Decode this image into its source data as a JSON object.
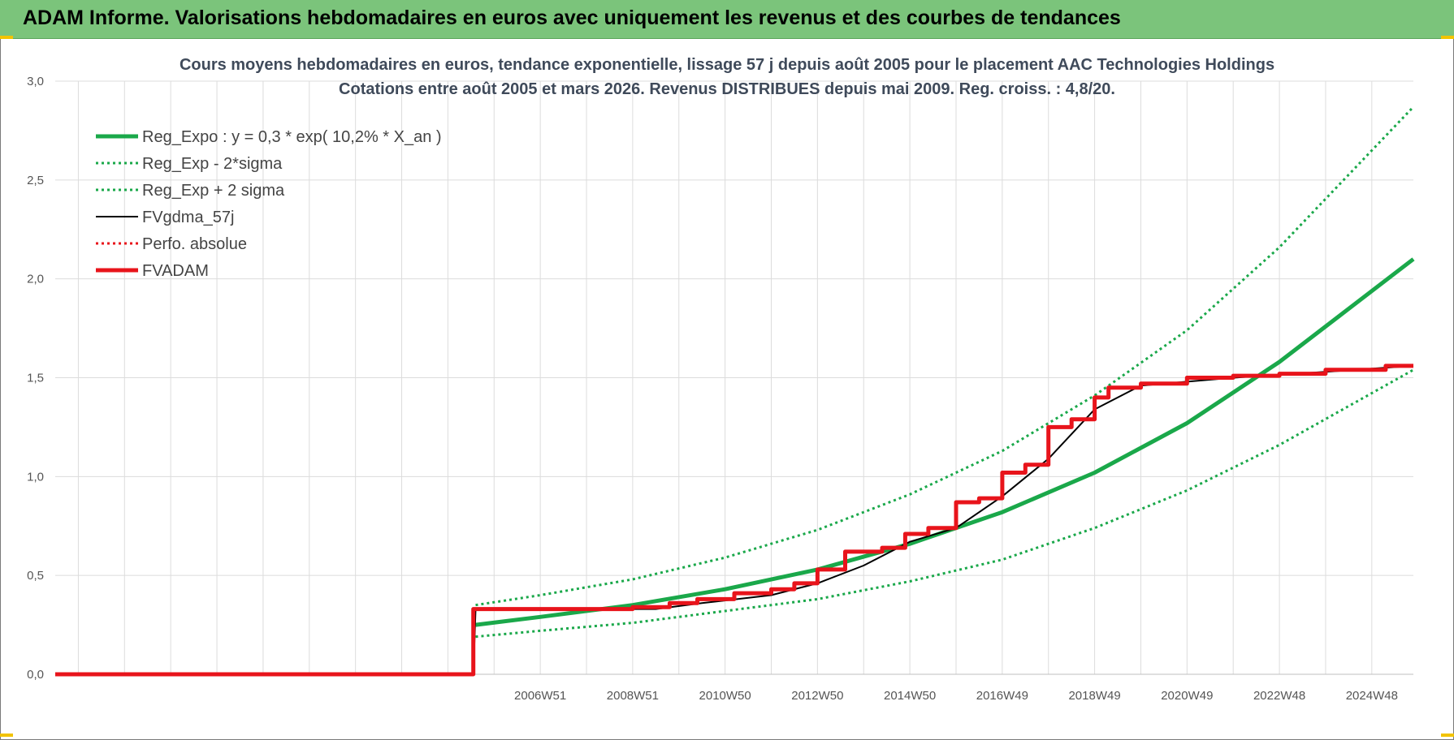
{
  "banner": {
    "title": "ADAM Informe. Valorisations hebdomadaires en euros avec uniquement les revenus et des courbes de tendances"
  },
  "colors": {
    "banner_bg": "#7bc47b",
    "green": "#1aa84a",
    "red": "#e8141b",
    "black": "#000000"
  },
  "chart_data": {
    "type": "line",
    "title": "Cours moyens hebdomadaires en euros, tendance exponentielle, lissage 57 j depuis août 2005 pour le placement AAC Technologies Holdings",
    "subtitle": "Cotations entre août 2005 et mars 2026. Revenus DISTRIBUES depuis mai 2009. Reg. croiss. : 4,8/20.",
    "xlabel": "",
    "ylabel": "",
    "ylim": [
      0,
      3
    ],
    "y_ticks": [
      "0,0",
      "0,5",
      "1,0",
      "1,5",
      "2,0",
      "2,5",
      "3,0"
    ],
    "x_range": [
      1996.5,
      2025.9
    ],
    "x_tick_labels": [
      "2006W51",
      "2008W51",
      "2010W50",
      "2012W50",
      "2014W50",
      "2016W49",
      "2018W49",
      "2020W49",
      "2022W48",
      "2024W48"
    ],
    "grid": true,
    "legend_position": "top-left",
    "series": [
      {
        "name": "Reg_Expo : y = 0,3 * exp( 10,2% *  X_an )",
        "color": "#1aa84a",
        "style": "solid-thick",
        "x": [
          2005.6,
          2007,
          2009,
          2011,
          2013,
          2015,
          2017,
          2019,
          2021,
          2023,
          2025.9
        ],
        "y": [
          0.25,
          0.29,
          0.35,
          0.43,
          0.53,
          0.66,
          0.82,
          1.02,
          1.27,
          1.58,
          2.1
        ]
      },
      {
        "name": "Reg_Exp - 2*sigma",
        "color": "#1aa84a",
        "style": "dotted",
        "x": [
          2005.6,
          2007,
          2009,
          2011,
          2013,
          2015,
          2017,
          2019,
          2021,
          2023,
          2025.9
        ],
        "y": [
          0.19,
          0.22,
          0.26,
          0.32,
          0.38,
          0.47,
          0.58,
          0.74,
          0.93,
          1.16,
          1.54
        ]
      },
      {
        "name": "Reg_Exp + 2 sigma",
        "color": "#1aa84a",
        "style": "dotted",
        "x": [
          2005.6,
          2007,
          2009,
          2011,
          2013,
          2015,
          2017,
          2019,
          2021,
          2023,
          2025.9
        ],
        "y": [
          0.35,
          0.4,
          0.48,
          0.59,
          0.73,
          0.91,
          1.13,
          1.41,
          1.74,
          2.16,
          2.87
        ]
      },
      {
        "name": "FVgdma_57j",
        "color": "#000000",
        "style": "solid-thin",
        "x": [
          1996.5,
          2005.55,
          2005.6,
          2009.5,
          2010.5,
          2012,
          2013,
          2014,
          2015,
          2016,
          2017,
          2018,
          2019,
          2020,
          2022,
          2024,
          2025.9
        ],
        "y": [
          0,
          0,
          0.33,
          0.33,
          0.36,
          0.4,
          0.46,
          0.55,
          0.67,
          0.74,
          0.9,
          1.09,
          1.34,
          1.46,
          1.5,
          1.53,
          1.56
        ]
      },
      {
        "name": "Perfo. absolue",
        "color": "#e8141b",
        "style": "dotted",
        "x": [],
        "y": []
      },
      {
        "name": "FVADAM",
        "color": "#e8141b",
        "style": "solid-thick",
        "x": [
          1996.5,
          2005.55,
          2005.55,
          2009.0,
          2009.0,
          2009.8,
          2009.8,
          2010.4,
          2010.4,
          2011.2,
          2011.2,
          2012.0,
          2012.0,
          2012.5,
          2012.5,
          2013.0,
          2013.0,
          2013.6,
          2013.6,
          2014.4,
          2014.4,
          2014.9,
          2014.9,
          2015.4,
          2015.4,
          2016.0,
          2016.0,
          2016.5,
          2016.5,
          2017.0,
          2017.0,
          2017.5,
          2017.5,
          2018.0,
          2018.0,
          2018.5,
          2018.5,
          2019.0,
          2019.0,
          2019.3,
          2019.3,
          2020.0,
          2020.0,
          2021.0,
          2021.0,
          2022.0,
          2022.0,
          2023.0,
          2023.0,
          2024.0,
          2024.0,
          2025.3,
          2025.3,
          2025.9
        ],
        "y": [
          0,
          0,
          0.33,
          0.33,
          0.34,
          0.34,
          0.36,
          0.36,
          0.38,
          0.38,
          0.41,
          0.41,
          0.43,
          0.43,
          0.46,
          0.46,
          0.53,
          0.53,
          0.62,
          0.62,
          0.64,
          0.64,
          0.71,
          0.71,
          0.74,
          0.74,
          0.87,
          0.87,
          0.89,
          0.89,
          1.02,
          1.02,
          1.06,
          1.06,
          1.25,
          1.25,
          1.29,
          1.29,
          1.4,
          1.4,
          1.45,
          1.45,
          1.47,
          1.47,
          1.5,
          1.5,
          1.51,
          1.51,
          1.52,
          1.52,
          1.54,
          1.54,
          1.56,
          1.56
        ]
      }
    ]
  }
}
